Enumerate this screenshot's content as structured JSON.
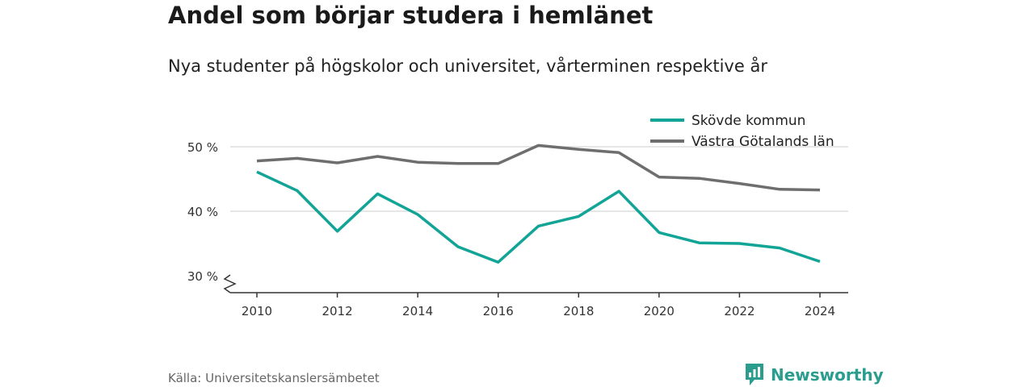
{
  "title": "Andel som börjar studera i hemlänet",
  "subtitle": "Nya studenter på högskolor och universitet, vårterminen respektive år",
  "source": "Källa: Universitetskanslersämbetet",
  "brand": "Newsworthy",
  "colors": {
    "skovde": "#12a496",
    "vg": "#6e6e6e",
    "grid": "#dddddd",
    "axis": "#333333",
    "brand": "#2a9d8f"
  },
  "chart_data": {
    "type": "line",
    "x": [
      2010,
      2011,
      2012,
      2013,
      2014,
      2015,
      2016,
      2017,
      2018,
      2019,
      2020,
      2021,
      2022,
      2023,
      2024
    ],
    "series": [
      {
        "name": "Skövde kommun",
        "values": [
          46.1,
          43.2,
          36.9,
          42.7,
          39.5,
          34.5,
          32.1,
          37.7,
          39.2,
          43.1,
          36.7,
          35.1,
          35.0,
          34.3,
          32.2
        ]
      },
      {
        "name": "Västra Götalands län",
        "values": [
          47.8,
          48.2,
          47.5,
          48.5,
          47.6,
          47.4,
          47.4,
          50.2,
          49.6,
          49.1,
          45.3,
          45.1,
          44.3,
          43.4,
          43.3
        ]
      }
    ],
    "y_ticks": [
      "50 %",
      "40 %",
      "30 %"
    ],
    "x_ticks": [
      "2010",
      "2012",
      "2014",
      "2016",
      "2018",
      "2020",
      "2022",
      "2024"
    ],
    "ylim": [
      30,
      50
    ],
    "legend_position": "top-right",
    "grid": true,
    "axis_break": true
  }
}
